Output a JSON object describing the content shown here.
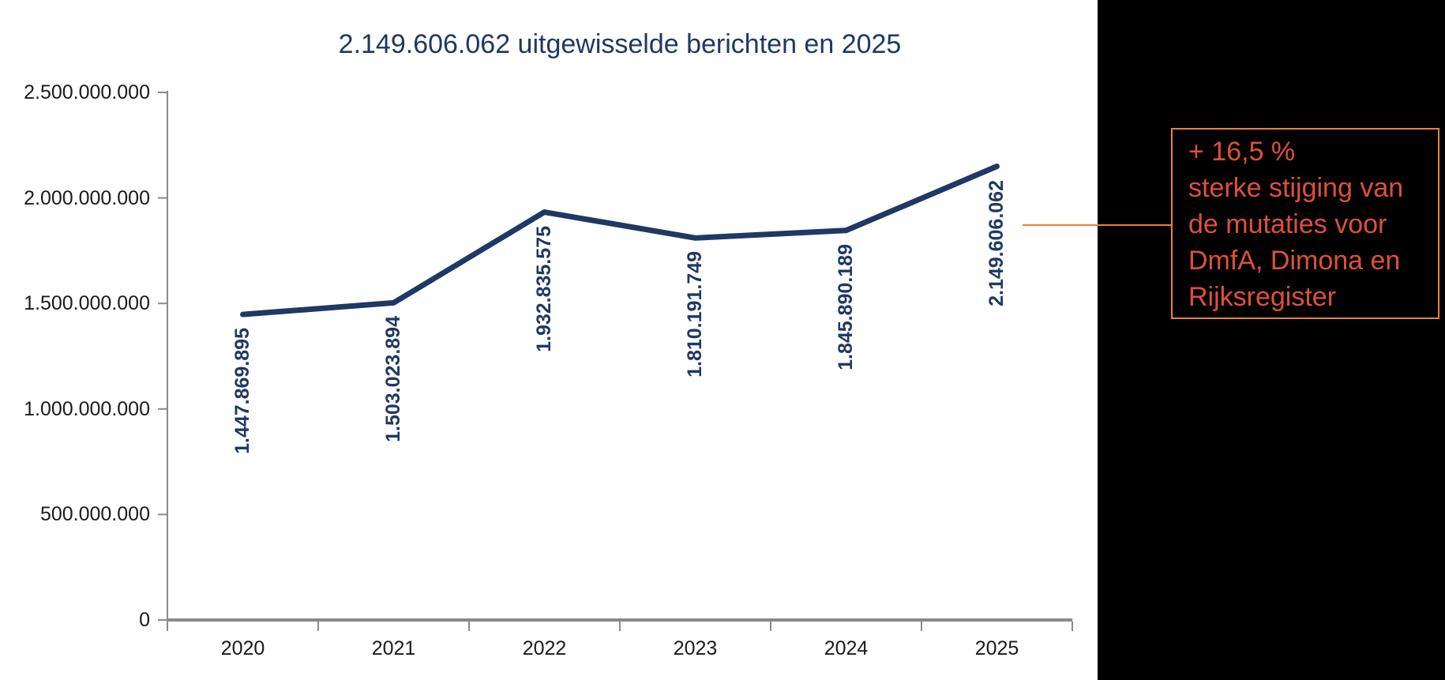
{
  "chart_data": {
    "type": "line",
    "title": "2.149.606.062 uitgewisselde berichten en 2025",
    "categories": [
      "2020",
      "2021",
      "2022",
      "2023",
      "2024",
      "2025"
    ],
    "series": [
      {
        "name": "uitgewisselde berichten",
        "values": [
          1447869895,
          1503023894,
          1932835575,
          1810191749,
          1845890189,
          2149606062
        ]
      }
    ],
    "point_labels": [
      "1.447.869.895",
      "1.503.023.894",
      "1.932.835.575",
      "1.810.191.749",
      "1.845.890.189",
      "2.149.606.062"
    ],
    "xlabel": "",
    "ylabel": "",
    "ylim": [
      0,
      2500000000
    ],
    "ytick_values": [
      0,
      500000000,
      1000000000,
      1500000000,
      2000000000,
      2500000000
    ],
    "ytick_labels": [
      "0",
      "500.000.000",
      "1.000.000.000",
      "1.500.000.000",
      "2.000.000.000",
      "2.500.000.000"
    ],
    "grid": false,
    "legend": "none",
    "line_color": "#1f3864"
  },
  "annotation": {
    "lines": [
      "+ 16,5 %",
      "sterke stijging van",
      "de mutaties voor",
      "DmfA, Dimona en",
      "Rijksregister"
    ],
    "text_color": "#dd5138",
    "border_color": "#e8823c",
    "leader_color": "#ed7d31"
  },
  "colors": {
    "navy": "#1f3864",
    "axis": "#8a8a8a",
    "tick_label": "#1a1a1a",
    "panel": "#000000",
    "background": "#ffffff"
  }
}
